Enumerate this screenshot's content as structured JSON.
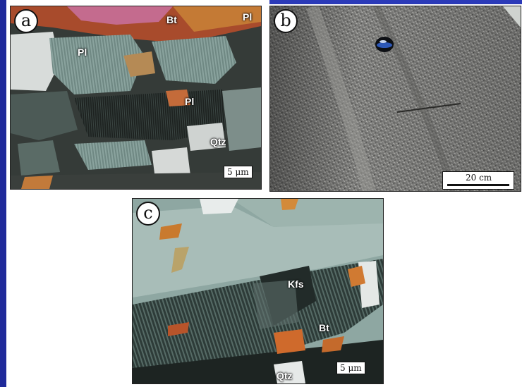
{
  "panels": {
    "a": {
      "letter": "a",
      "labels": [
        "Bt",
        "Pl",
        "Pl",
        "Pl",
        "Qtz"
      ],
      "scale": "5 μm"
    },
    "b": {
      "letter": "b",
      "scale": "20 cm"
    },
    "c": {
      "letter": "c",
      "labels": [
        "Kfs",
        "Bt",
        "Qtz"
      ],
      "scale": "5 μm"
    }
  },
  "colors": {
    "frame_accent": "#1f2a9a"
  }
}
